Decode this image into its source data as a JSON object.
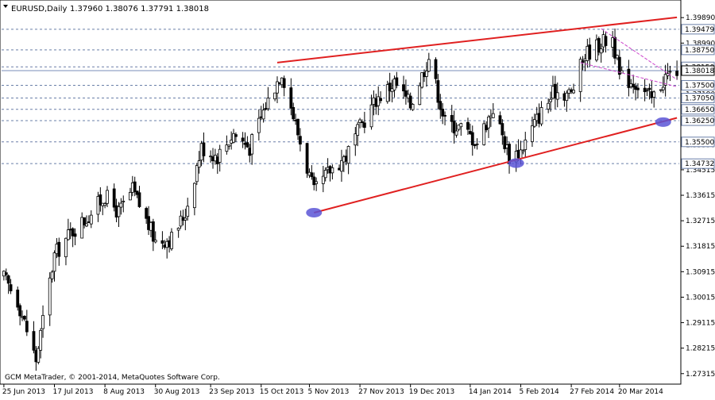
{
  "header": {
    "symbol": "EURUSD,Daily",
    "ohlc": "1.37960 1.38076 1.37791 1.38018"
  },
  "footer": {
    "copyright": "GCM MetaTrader, © 2001-2014, MetaQuotes Software Corp."
  },
  "colors": {
    "background": "#ffffff",
    "grid": "#6a7fa8",
    "candle": "#000000",
    "trendline": "#e02020",
    "channel": "#cc44cc",
    "marker": "#5a55d6",
    "price_line": "#7a8db8"
  },
  "chart_data": {
    "type": "candlestick",
    "symbol": "EURUSD",
    "timeframe": "Daily",
    "last_ohlc": {
      "open": 1.3796,
      "high": 1.38076,
      "low": 1.37791,
      "close": 1.38018
    },
    "current_price": 1.38018,
    "ylim": [
      1.27,
      1.404
    ],
    "y_ticks": [
      "1.39890",
      "1.38990",
      "1.38090",
      "1.37190",
      "1.36290",
      "1.35390",
      "1.34515",
      "1.33615",
      "1.32715",
      "1.31815",
      "1.30915",
      "1.30015",
      "1.29115",
      "1.28215",
      "1.27315"
    ],
    "x_ticks": [
      "25 Jun 2013",
      "17 Jul 2013",
      "8 Aug 2013",
      "30 Aug 2013",
      "23 Sep 2013",
      "15 Oct 2013",
      "5 Nov 2013",
      "27 Nov 2013",
      "19 Dec 2013",
      "14 Jan 2014",
      "5 Feb 2014",
      "27 Feb 2014",
      "20 Mar 2014"
    ],
    "levels": [
      {
        "price": 1.39479,
        "label": "1.39479"
      },
      {
        "price": 1.3875,
        "label": "1.38750"
      },
      {
        "price": 1.3815,
        "label": "1.38150"
      },
      {
        "price": 1.375,
        "label": "1.37500"
      },
      {
        "price": 1.3705,
        "label": "1.37050"
      },
      {
        "price": 1.3665,
        "label": "1.36650"
      },
      {
        "price": 1.3625,
        "label": "1.36250"
      },
      {
        "price": 1.355,
        "label": "1.35500"
      },
      {
        "price": 1.34732,
        "label": "1.34732"
      }
    ],
    "trendlines": [
      {
        "name": "upper",
        "from": {
          "date": "2013-10-22",
          "price": 1.383
        },
        "to": {
          "date": "2014-04-14",
          "price": 1.399
        }
      },
      {
        "name": "lower",
        "from": {
          "date": "2013-11-07",
          "price": 1.33
        },
        "to": {
          "date": "2014-04-14",
          "price": 1.3635
        }
      }
    ],
    "channel_lines": [
      {
        "from": {
          "date": "2014-03-03",
          "price": 1.383
        },
        "to": {
          "date": "2014-04-14",
          "price": 1.3745
        }
      },
      {
        "from": {
          "date": "2014-03-12",
          "price": 1.395
        },
        "to": {
          "date": "2014-04-14",
          "price": 1.377
        }
      }
    ],
    "markers": [
      {
        "date": "2013-11-07",
        "price": 1.33
      },
      {
        "date": "2014-02-03",
        "price": 1.3475
      },
      {
        "date": "2014-04-08",
        "price": 1.362
      }
    ],
    "close_path": [
      {
        "date": "2013-06-25",
        "close": 1.307
      },
      {
        "date": "2013-07-01",
        "close": 1.299
      },
      {
        "date": "2013-07-09",
        "close": 1.278
      },
      {
        "date": "2013-07-17",
        "close": 1.315
      },
      {
        "date": "2013-07-24",
        "close": 1.323
      },
      {
        "date": "2013-07-31",
        "close": 1.328
      },
      {
        "date": "2013-08-08",
        "close": 1.336
      },
      {
        "date": "2013-08-14",
        "close": 1.33
      },
      {
        "date": "2013-08-20",
        "close": 1.338
      },
      {
        "date": "2013-08-30",
        "close": 1.32
      },
      {
        "date": "2013-09-06",
        "close": 1.321
      },
      {
        "date": "2013-09-12",
        "close": 1.33
      },
      {
        "date": "2013-09-19",
        "close": 1.353
      },
      {
        "date": "2013-09-26",
        "close": 1.35
      },
      {
        "date": "2013-10-03",
        "close": 1.358
      },
      {
        "date": "2013-10-10",
        "close": 1.353
      },
      {
        "date": "2013-10-17",
        "close": 1.368
      },
      {
        "date": "2013-10-24",
        "close": 1.38
      },
      {
        "date": "2013-10-31",
        "close": 1.358
      },
      {
        "date": "2013-11-07",
        "close": 1.337
      },
      {
        "date": "2013-11-14",
        "close": 1.345
      },
      {
        "date": "2013-11-21",
        "close": 1.35
      },
      {
        "date": "2013-11-27",
        "close": 1.36
      },
      {
        "date": "2013-12-04",
        "close": 1.37
      },
      {
        "date": "2013-12-12",
        "close": 1.376
      },
      {
        "date": "2013-12-19",
        "close": 1.368
      },
      {
        "date": "2013-12-27",
        "close": 1.385
      },
      {
        "date": "2014-01-03",
        "close": 1.362
      },
      {
        "date": "2014-01-10",
        "close": 1.36
      },
      {
        "date": "2014-01-17",
        "close": 1.355
      },
      {
        "date": "2014-01-24",
        "close": 1.367
      },
      {
        "date": "2014-01-31",
        "close": 1.35
      },
      {
        "date": "2014-02-05",
        "close": 1.352
      },
      {
        "date": "2014-02-12",
        "close": 1.363
      },
      {
        "date": "2014-02-20",
        "close": 1.373
      },
      {
        "date": "2014-02-27",
        "close": 1.372
      },
      {
        "date": "2014-03-05",
        "close": 1.386
      },
      {
        "date": "2014-03-12",
        "close": 1.39
      },
      {
        "date": "2014-03-17",
        "close": 1.392
      },
      {
        "date": "2014-03-20",
        "close": 1.378
      },
      {
        "date": "2014-03-27",
        "close": 1.376
      },
      {
        "date": "2014-04-03",
        "close": 1.37
      },
      {
        "date": "2014-04-09",
        "close": 1.378
      },
      {
        "date": "2014-04-14",
        "close": 1.3802
      }
    ]
  }
}
